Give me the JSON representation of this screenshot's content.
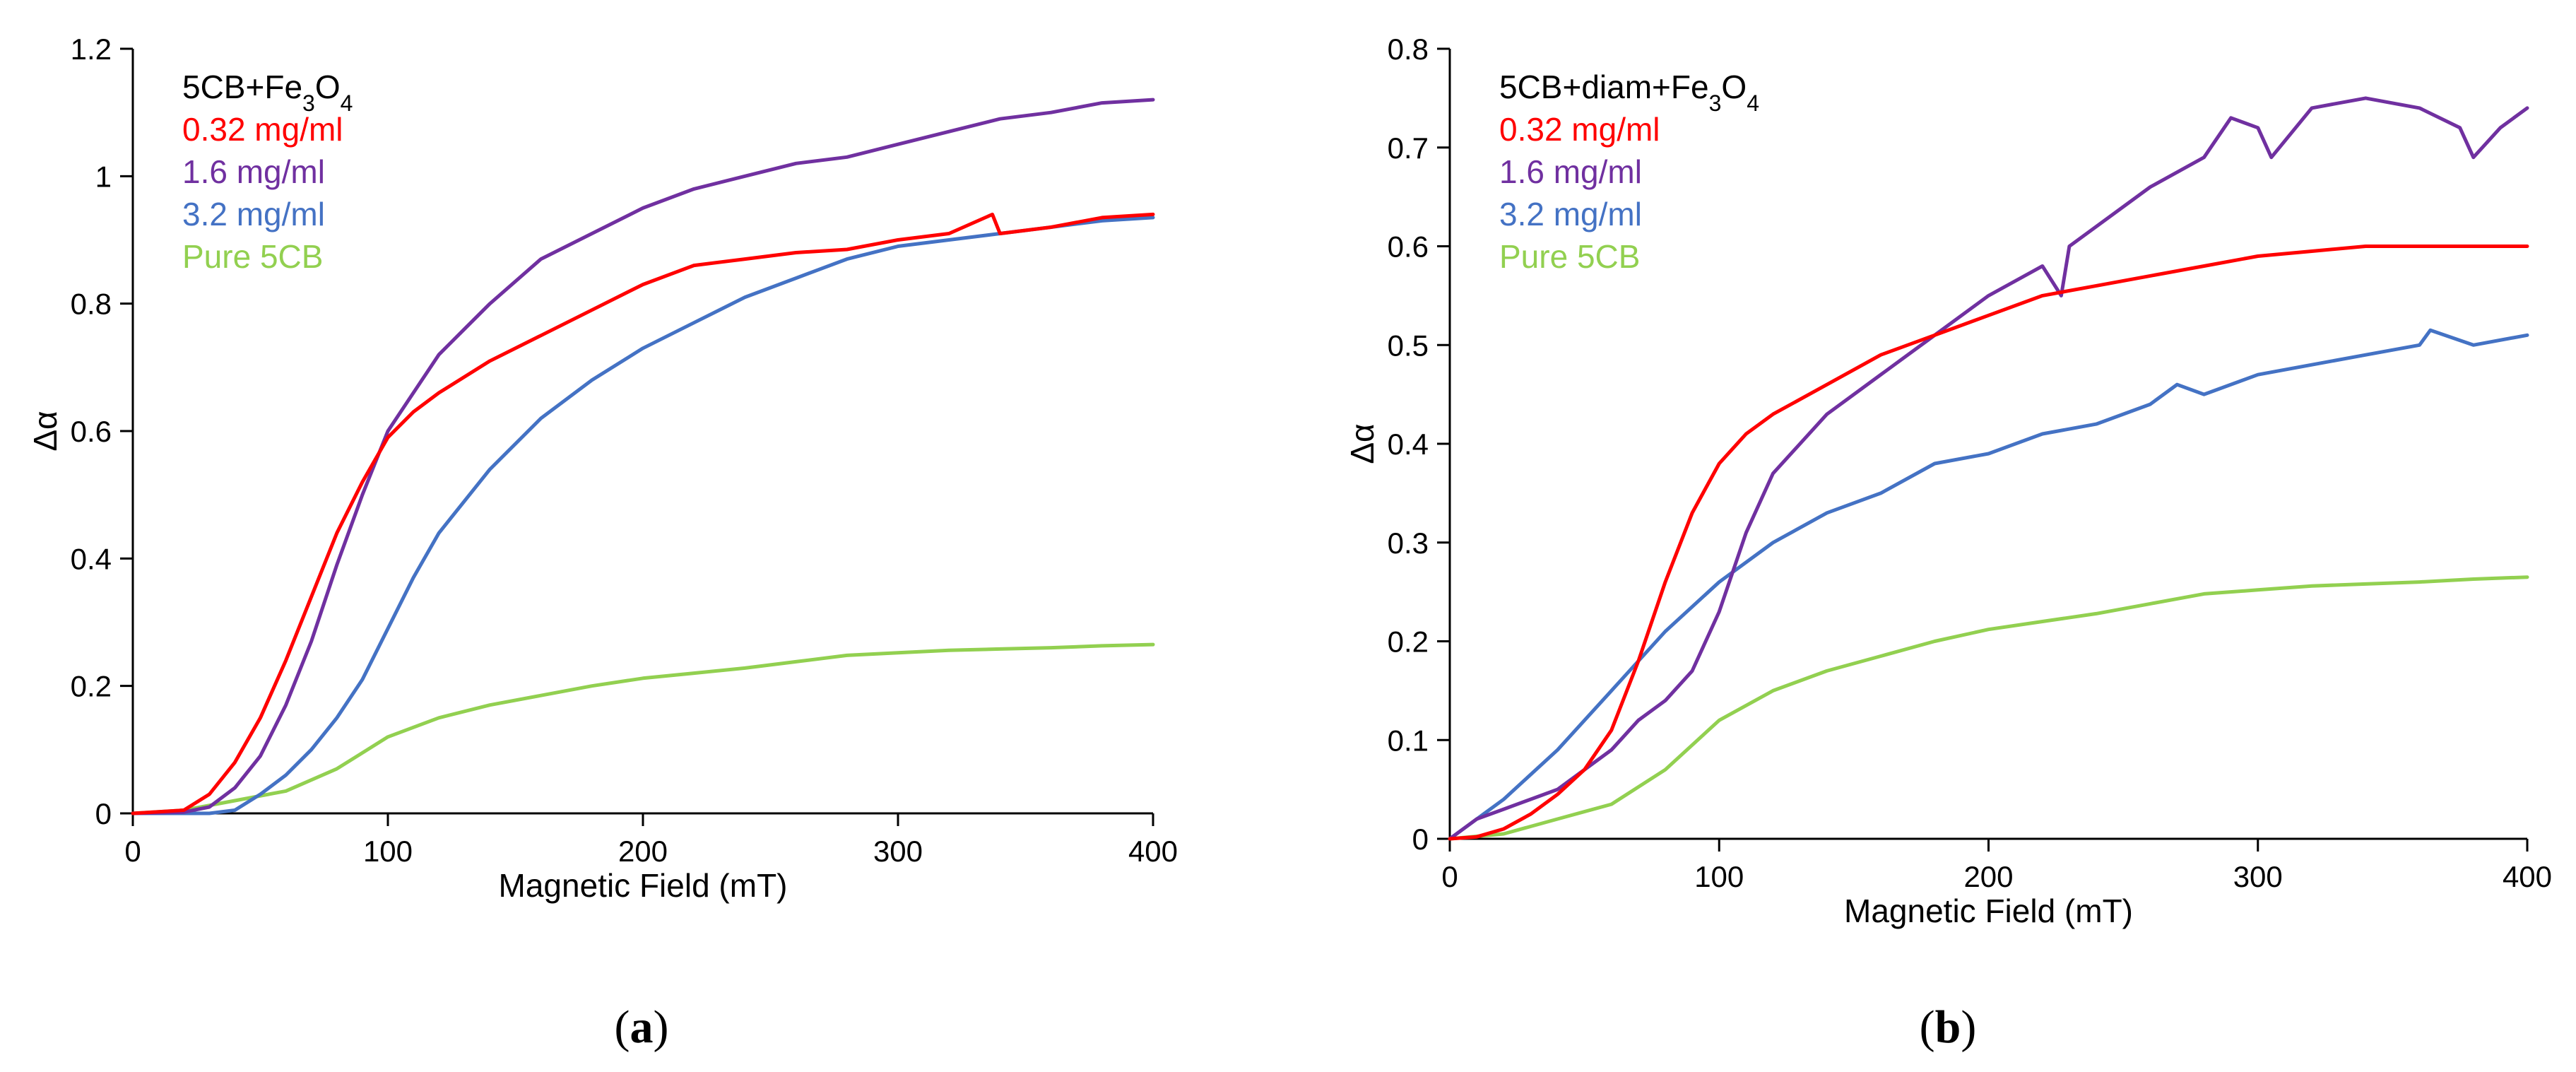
{
  "chart_data": [
    {
      "type": "line",
      "panel_label": "a",
      "xlabel": "Magnetic Field (mT)",
      "ylabel": "Δα",
      "xlim": [
        0,
        400
      ],
      "ylim": [
        0,
        1.2
      ],
      "x_ticks": [
        "0",
        "100",
        "200",
        "300",
        "400"
      ],
      "y_ticks": [
        "0",
        "0.2",
        "0.4",
        "0.6",
        "0.8",
        "1",
        "1.2"
      ],
      "grid": false,
      "legend_position": "top-left",
      "legend_title": {
        "base": "5CB+Fe",
        "sub1": "3",
        "mid": "O",
        "sub2": "4",
        "color": "#000000"
      },
      "series": [
        {
          "name": "0.32 mg/ml",
          "color": "#ff0000",
          "x": [
            0,
            20,
            30,
            40,
            50,
            60,
            70,
            80,
            90,
            100,
            110,
            120,
            140,
            160,
            180,
            200,
            220,
            240,
            260,
            280,
            300,
            320,
            337,
            340,
            360,
            380,
            400
          ],
          "y": [
            0,
            0.005,
            0.03,
            0.08,
            0.15,
            0.24,
            0.34,
            0.44,
            0.52,
            0.59,
            0.63,
            0.66,
            0.71,
            0.75,
            0.79,
            0.83,
            0.86,
            0.87,
            0.88,
            0.885,
            0.9,
            0.91,
            0.94,
            0.91,
            0.92,
            0.935,
            0.94
          ]
        },
        {
          "name": "1.6 mg/ml",
          "color": "#7030a0",
          "x": [
            0,
            20,
            30,
            40,
            50,
            60,
            70,
            80,
            90,
            100,
            110,
            120,
            130,
            140,
            160,
            180,
            200,
            220,
            240,
            260,
            280,
            300,
            320,
            340,
            360,
            380,
            400
          ],
          "y": [
            0,
            0.002,
            0.01,
            0.04,
            0.09,
            0.17,
            0.27,
            0.39,
            0.5,
            0.6,
            0.66,
            0.72,
            0.76,
            0.8,
            0.87,
            0.91,
            0.95,
            0.98,
            1.0,
            1.02,
            1.03,
            1.05,
            1.07,
            1.09,
            1.1,
            1.115,
            1.12
          ]
        },
        {
          "name": "3.2 mg/ml",
          "color": "#4472c4",
          "x": [
            0,
            30,
            40,
            50,
            60,
            70,
            80,
            90,
            100,
            110,
            120,
            140,
            160,
            180,
            200,
            220,
            240,
            260,
            280,
            300,
            320,
            340,
            360,
            380,
            400
          ],
          "y": [
            0,
            0,
            0.005,
            0.03,
            0.06,
            0.1,
            0.15,
            0.21,
            0.29,
            0.37,
            0.44,
            0.54,
            0.62,
            0.68,
            0.73,
            0.77,
            0.81,
            0.84,
            0.87,
            0.89,
            0.9,
            0.91,
            0.92,
            0.93,
            0.935
          ]
        },
        {
          "name": "Pure 5CB",
          "color": "#92d050",
          "x": [
            0,
            20,
            40,
            60,
            80,
            100,
            120,
            140,
            160,
            180,
            200,
            220,
            240,
            260,
            280,
            300,
            320,
            340,
            360,
            380,
            400
          ],
          "y": [
            0,
            0.005,
            0.02,
            0.035,
            0.07,
            0.12,
            0.15,
            0.17,
            0.185,
            0.2,
            0.212,
            0.22,
            0.228,
            0.238,
            0.248,
            0.252,
            0.256,
            0.258,
            0.26,
            0.263,
            0.265
          ]
        }
      ]
    },
    {
      "type": "line",
      "panel_label": "b",
      "xlabel": "Magnetic Field (mT)",
      "ylabel": "Δα",
      "xlim": [
        0,
        400
      ],
      "ylim": [
        0,
        0.8
      ],
      "x_ticks": [
        "0",
        "100",
        "200",
        "300",
        "400"
      ],
      "y_ticks": [
        "0",
        "0.1",
        "0.2",
        "0.3",
        "0.4",
        "0.5",
        "0.6",
        "0.7",
        "0.8"
      ],
      "grid": false,
      "legend_position": "top-left",
      "legend_title": {
        "base": "5CB+diam+Fe",
        "sub1": "3",
        "mid": "O",
        "sub2": "4",
        "color": "#000000"
      },
      "series": [
        {
          "name": "0.32 mg/ml",
          "color": "#ff0000",
          "x": [
            0,
            10,
            20,
            30,
            40,
            50,
            60,
            70,
            80,
            90,
            100,
            110,
            120,
            140,
            160,
            180,
            200,
            220,
            240,
            260,
            280,
            300,
            320,
            340,
            360,
            380,
            400
          ],
          "y": [
            0,
            0.002,
            0.01,
            0.025,
            0.045,
            0.07,
            0.11,
            0.18,
            0.26,
            0.33,
            0.38,
            0.41,
            0.43,
            0.46,
            0.49,
            0.51,
            0.53,
            0.55,
            0.56,
            0.57,
            0.58,
            0.59,
            0.595,
            0.6,
            0.6,
            0.6,
            0.6
          ]
        },
        {
          "name": "1.6 mg/ml",
          "color": "#7030a0",
          "x": [
            0,
            10,
            20,
            30,
            40,
            50,
            60,
            70,
            80,
            90,
            100,
            110,
            120,
            140,
            160,
            180,
            200,
            220,
            227,
            230,
            260,
            280,
            290,
            300,
            305,
            320,
            340,
            360,
            375,
            380,
            390,
            400
          ],
          "y": [
            0,
            0.02,
            0.03,
            0.04,
            0.05,
            0.07,
            0.09,
            0.12,
            0.14,
            0.17,
            0.23,
            0.31,
            0.37,
            0.43,
            0.47,
            0.51,
            0.55,
            0.58,
            0.55,
            0.6,
            0.66,
            0.69,
            0.73,
            0.72,
            0.69,
            0.74,
            0.75,
            0.74,
            0.72,
            0.69,
            0.72,
            0.74
          ]
        },
        {
          "name": "3.2 mg/ml",
          "color": "#4472c4",
          "x": [
            0,
            20,
            40,
            60,
            80,
            100,
            120,
            140,
            160,
            180,
            200,
            220,
            240,
            260,
            270,
            280,
            300,
            320,
            340,
            360,
            364,
            380,
            400
          ],
          "y": [
            0,
            0.04,
            0.09,
            0.15,
            0.21,
            0.26,
            0.3,
            0.33,
            0.35,
            0.38,
            0.39,
            0.41,
            0.42,
            0.44,
            0.46,
            0.45,
            0.47,
            0.48,
            0.49,
            0.5,
            0.515,
            0.5,
            0.51
          ]
        },
        {
          "name": "Pure 5CB",
          "color": "#92d050",
          "x": [
            0,
            20,
            40,
            60,
            80,
            100,
            120,
            140,
            160,
            180,
            200,
            220,
            240,
            260,
            280,
            300,
            320,
            340,
            360,
            380,
            400
          ],
          "y": [
            0,
            0.005,
            0.02,
            0.035,
            0.07,
            0.12,
            0.15,
            0.17,
            0.185,
            0.2,
            0.212,
            0.22,
            0.228,
            0.238,
            0.248,
            0.252,
            0.256,
            0.258,
            0.26,
            0.263,
            0.265
          ]
        }
      ]
    }
  ]
}
